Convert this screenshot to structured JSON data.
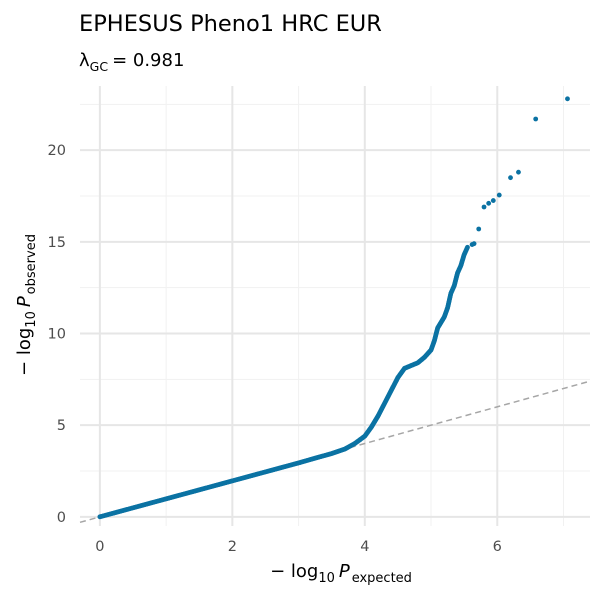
{
  "chart_data": {
    "type": "scatter",
    "title": "EPHESUS Pheno1 HRC EUR",
    "subtitle": {
      "symbol": "λ",
      "subscript": "GC",
      "value": "= 0.981"
    },
    "xlabel": {
      "prefix": "− log",
      "log_base": "10",
      "var": "P",
      "subscript": "expected"
    },
    "ylabel": {
      "prefix": "− log",
      "log_base": "10",
      "var": "P",
      "subscript": "observed"
    },
    "xlim": [
      -0.3,
      7.4
    ],
    "ylim": [
      -0.5,
      23.5
    ],
    "x_ticks": [
      0,
      2,
      4,
      6
    ],
    "x_tick_labels": [
      "0",
      "2",
      "4",
      "6"
    ],
    "y_ticks": [
      0,
      5,
      10,
      15,
      20
    ],
    "y_tick_labels": [
      "0",
      "5",
      "10",
      "15",
      "20"
    ],
    "grid": true,
    "reference_line": {
      "slope": 1,
      "intercept": 0,
      "style": "dashed",
      "color": "#a6a6a6"
    },
    "point_color": "#0b72a3",
    "background": "#ffffff",
    "curve": [
      [
        0.0,
        0.0
      ],
      [
        0.5,
        0.49
      ],
      [
        1.0,
        0.98
      ],
      [
        1.5,
        1.47
      ],
      [
        2.0,
        1.96
      ],
      [
        2.5,
        2.45
      ],
      [
        3.0,
        2.94
      ],
      [
        3.3,
        3.25
      ],
      [
        3.5,
        3.45
      ],
      [
        3.7,
        3.7
      ],
      [
        3.85,
        4.0
      ],
      [
        4.0,
        4.4
      ],
      [
        4.1,
        4.9
      ],
      [
        4.2,
        5.5
      ],
      [
        4.3,
        6.2
      ],
      [
        4.4,
        6.9
      ],
      [
        4.5,
        7.6
      ],
      [
        4.6,
        8.1
      ],
      [
        4.7,
        8.25
      ],
      [
        4.8,
        8.4
      ],
      [
        4.9,
        8.7
      ],
      [
        5.0,
        9.1
      ],
      [
        5.05,
        9.6
      ],
      [
        5.1,
        10.3
      ],
      [
        5.2,
        10.9
      ],
      [
        5.25,
        11.4
      ],
      [
        5.3,
        12.2
      ],
      [
        5.35,
        12.6
      ],
      [
        5.4,
        13.3
      ],
      [
        5.45,
        13.7
      ],
      [
        5.5,
        14.3
      ],
      [
        5.55,
        14.7
      ]
    ],
    "tail_points": [
      {
        "x": 5.62,
        "y": 14.85
      },
      {
        "x": 5.65,
        "y": 14.9
      },
      {
        "x": 5.72,
        "y": 15.7
      },
      {
        "x": 5.8,
        "y": 16.9
      },
      {
        "x": 5.87,
        "y": 17.1
      },
      {
        "x": 5.94,
        "y": 17.25
      },
      {
        "x": 6.03,
        "y": 17.55
      },
      {
        "x": 6.2,
        "y": 18.5
      },
      {
        "x": 6.32,
        "y": 18.8
      },
      {
        "x": 6.58,
        "y": 21.7
      },
      {
        "x": 7.06,
        "y": 22.8
      }
    ]
  }
}
